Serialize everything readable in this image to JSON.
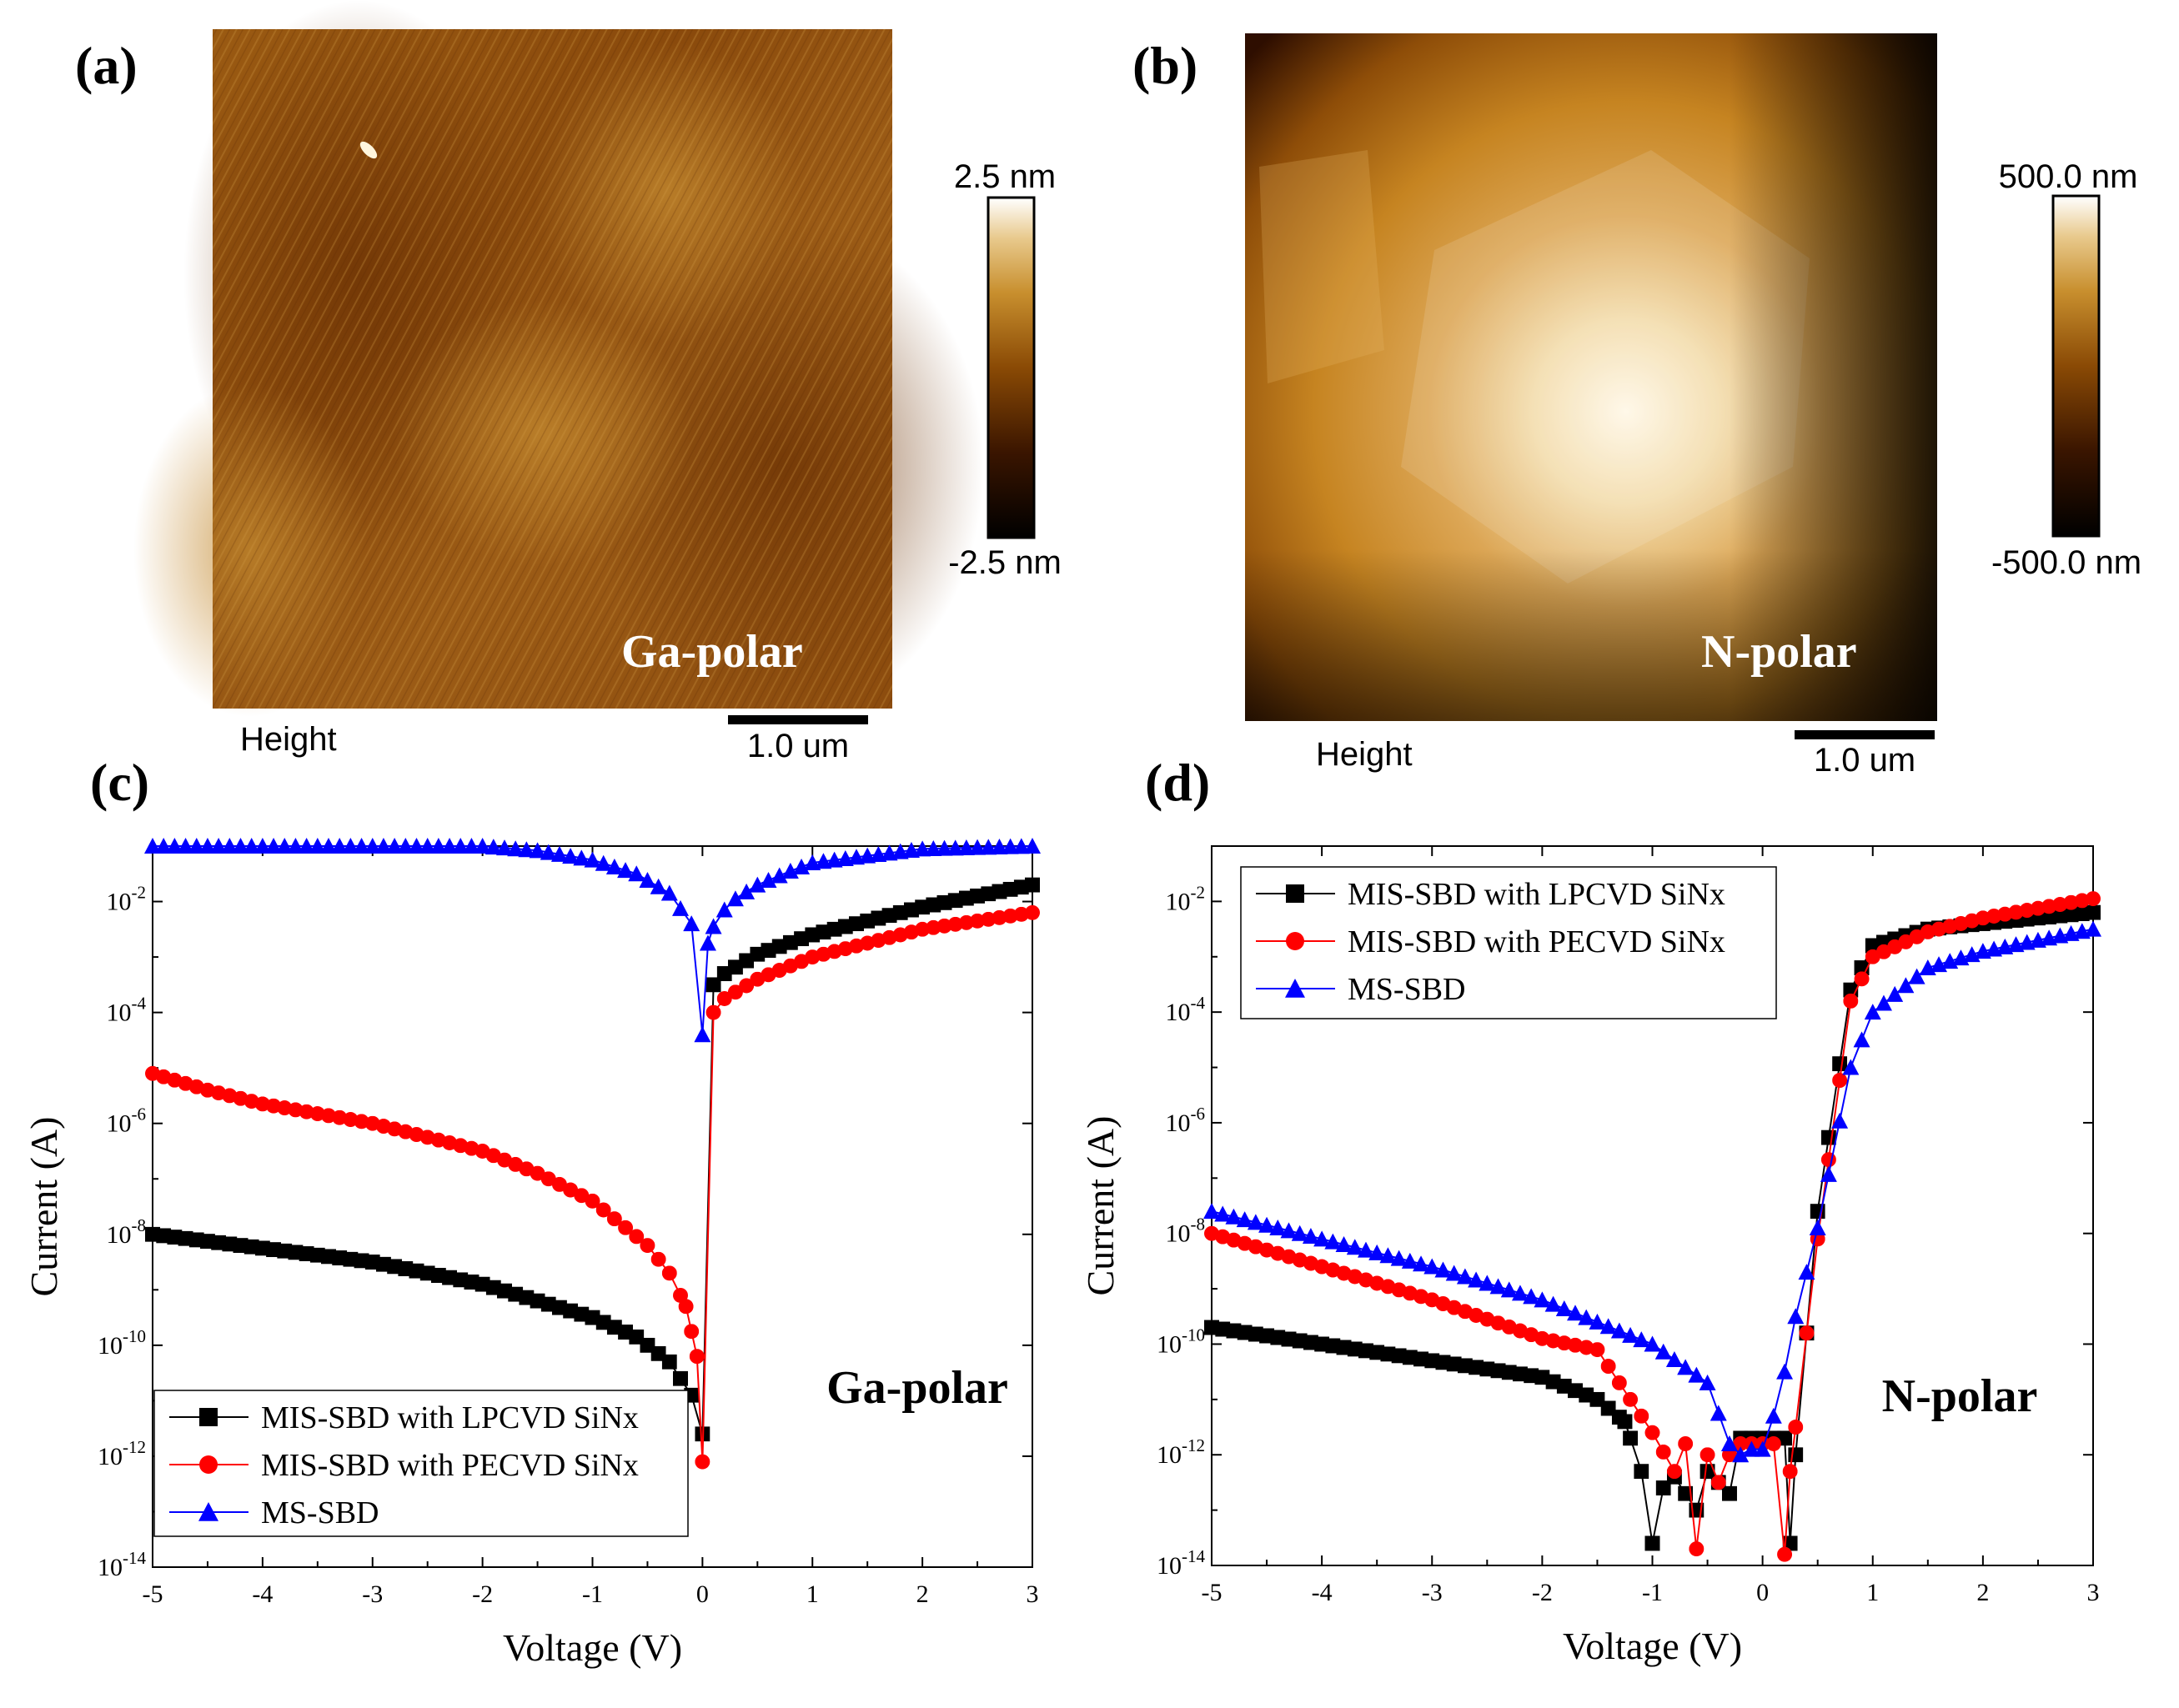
{
  "panels": {
    "a": {
      "letter": "(a)",
      "sample_label": "Ga-polar",
      "channel_label": "Height",
      "scale_bar": "1.0 um",
      "colorbar": {
        "max": "2.5 nm",
        "min": "-2.5 nm"
      },
      "palette": [
        "#000000",
        "#3a1500",
        "#8a4a05",
        "#c88f2e",
        "#e8c98c",
        "#ffffff"
      ]
    },
    "b": {
      "letter": "(b)",
      "sample_label": "N-polar",
      "channel_label": "Height",
      "scale_bar": "1.0 um",
      "colorbar": {
        "max": "500.0 nm",
        "min": "-500.0 nm"
      }
    },
    "c": {
      "letter": "(c)"
    },
    "d": {
      "letter": "(d)"
    }
  },
  "chart_data": [
    {
      "panel": "c",
      "type": "scatter",
      "annotation": "Ga-polar",
      "xlabel": "Voltage (V)",
      "ylabel": "Current (A)",
      "xlim": [
        -5,
        3
      ],
      "ylim_log10": [
        -14,
        -1
      ],
      "yscale": "log",
      "x_ticks": [
        "-5",
        "-4",
        "-3",
        "-2",
        "-1",
        "0",
        "1",
        "2",
        "3"
      ],
      "y_tick_exponents": [
        "-2",
        "-4",
        "-6",
        "-8",
        "-10",
        "-12",
        "-14"
      ],
      "legend": "bottom-left",
      "series": [
        {
          "name": "MIS-SBD with LPCVD SiNx",
          "color": "#000000",
          "marker": "square",
          "x": [
            -5,
            -4,
            -3,
            -2,
            -1.5,
            -1,
            -0.6,
            -0.3,
            -0.1,
            0,
            0.1,
            0.2,
            0.5,
            1,
            2,
            3
          ],
          "log10_current": [
            -8,
            -8.25,
            -8.5,
            -8.9,
            -9.2,
            -9.5,
            -9.85,
            -10.3,
            -10.9,
            -11.6,
            -3.5,
            -3.3,
            -2.95,
            -2.6,
            -2.1,
            -1.7
          ]
        },
        {
          "name": "MIS-SBD with PECVD SiNx",
          "color": "#ff0000",
          "marker": "circle",
          "x": [
            -5,
            -4.5,
            -4,
            -3,
            -2,
            -1.5,
            -1,
            -0.5,
            -0.3,
            -0.15,
            -0.05,
            0,
            0.1,
            0.2,
            0.5,
            1,
            2,
            3
          ],
          "log10_current": [
            -5.1,
            -5.4,
            -5.65,
            -6,
            -6.5,
            -6.9,
            -7.4,
            -8.2,
            -8.7,
            -9.3,
            -10.2,
            -12.1,
            -4,
            -3.75,
            -3.4,
            -3,
            -2.5,
            -2.2
          ]
        },
        {
          "name": "MS-SBD",
          "color": "#0000ff",
          "marker": "triangle",
          "x": [
            -5,
            -4,
            -3,
            -2,
            -1.5,
            -1,
            -0.6,
            -0.3,
            -0.1,
            0,
            0.05,
            0.1,
            0.2,
            0.3,
            0.5,
            0.8,
            1,
            2,
            3
          ],
          "log10_current": [
            -1,
            -1,
            -1,
            -1,
            -1.08,
            -1.25,
            -1.5,
            -1.85,
            -2.4,
            -4.4,
            -2.75,
            -2.45,
            -2.15,
            -1.95,
            -1.7,
            -1.45,
            -1.3,
            -1.05,
            -1
          ]
        }
      ]
    },
    {
      "panel": "d",
      "type": "scatter",
      "annotation": "N-polar",
      "xlabel": "Voltage (V)",
      "ylabel": "Current (A)",
      "xlim": [
        -5,
        3
      ],
      "ylim_log10": [
        -14,
        -1
      ],
      "yscale": "log",
      "x_ticks": [
        "-5",
        "-4",
        "-3",
        "-2",
        "-1",
        "0",
        "1",
        "2",
        "3"
      ],
      "y_tick_exponents": [
        "-2",
        "-4",
        "-6",
        "-8",
        "-10",
        "-12",
        "-14"
      ],
      "legend": "top-left",
      "series": [
        {
          "name": "MIS-SBD with LPCVD SiNx",
          "color": "#000000",
          "marker": "square",
          "x": [
            -5,
            -4,
            -3,
            -2,
            -1.5,
            -1.25,
            -1.1,
            -1,
            -0.9,
            -0.8,
            -0.6,
            -0.5,
            -0.3,
            -0.2,
            0,
            0.1,
            0.2,
            0.25,
            0.3,
            0.5,
            0.8,
            1,
            1.5,
            2,
            3
          ],
          "log10_current": [
            -9.7,
            -10,
            -10.3,
            -10.6,
            -11,
            -11.4,
            -12.3,
            -13.6,
            -12.6,
            -12.4,
            -13,
            -12.3,
            -12.7,
            -11.7,
            -11.7,
            -11.7,
            -11.7,
            -13.6,
            -12,
            -7.6,
            -3.6,
            -2.8,
            -2.5,
            -2.4,
            -2.2
          ]
        },
        {
          "name": "MIS-SBD with PECVD SiNx",
          "color": "#ff0000",
          "marker": "circle",
          "x": [
            -5,
            -4,
            -3,
            -2,
            -1.5,
            -1,
            -0.8,
            -0.7,
            -0.6,
            -0.5,
            -0.4,
            -0.3,
            -0.2,
            0,
            0.1,
            0.2,
            0.25,
            0.3,
            0.5,
            0.8,
            1,
            1.5,
            2,
            3
          ],
          "log10_current": [
            -8,
            -8.6,
            -9.2,
            -9.9,
            -10.1,
            -11.6,
            -12.3,
            -11.8,
            -13.7,
            -12,
            -12.5,
            -12,
            -11.8,
            -11.8,
            -11.8,
            -13.8,
            -12.3,
            -11.5,
            -8.1,
            -3.8,
            -3,
            -2.55,
            -2.3,
            -1.95
          ]
        },
        {
          "name": "MS-SBD",
          "color": "#0000ff",
          "marker": "triangle",
          "x": [
            -5,
            -4,
            -3,
            -2,
            -1.5,
            -1,
            -0.5,
            -0.3,
            -0.2,
            -0.1,
            0,
            0.1,
            0.2,
            0.3,
            0.5,
            0.8,
            1,
            1.5,
            2,
            3
          ],
          "log10_current": [
            -7.6,
            -8.1,
            -8.6,
            -9.2,
            -9.6,
            -10,
            -10.7,
            -11.8,
            -12,
            -11.9,
            -11.9,
            -11.3,
            -10.5,
            -9.5,
            -7.9,
            -5,
            -4,
            -3.2,
            -2.9,
            -2.5
          ]
        }
      ]
    }
  ]
}
